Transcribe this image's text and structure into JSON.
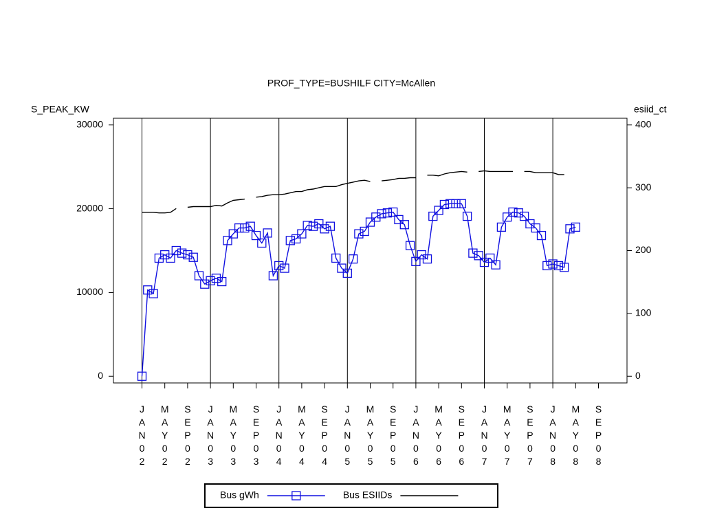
{
  "chart_data": {
    "type": "line",
    "title": "PROF_TYPE=BUSHILF CITY=McAllen",
    "y_label": "S_PEAK_KW",
    "y2_label": "esiid_ct",
    "x": [
      "2002-01",
      "2002-02",
      "2002-03",
      "2002-04",
      "2002-05",
      "2002-06",
      "2002-07",
      "2002-08",
      "2002-09",
      "2002-10",
      "2002-11",
      "2002-12",
      "2003-01",
      "2003-02",
      "2003-03",
      "2003-04",
      "2003-05",
      "2003-06",
      "2003-07",
      "2003-08",
      "2003-09",
      "2003-10",
      "2003-11",
      "2003-12",
      "2004-01",
      "2004-02",
      "2004-03",
      "2004-04",
      "2004-05",
      "2004-06",
      "2004-07",
      "2004-08",
      "2004-09",
      "2004-10",
      "2004-11",
      "2004-12",
      "2005-01",
      "2005-02",
      "2005-03",
      "2005-04",
      "2005-05",
      "2005-06",
      "2005-07",
      "2005-08",
      "2005-09",
      "2005-10",
      "2005-11",
      "2005-12",
      "2006-01",
      "2006-02",
      "2006-03",
      "2006-04",
      "2006-05",
      "2006-06",
      "2006-07",
      "2006-08",
      "2006-09",
      "2006-10",
      "2006-11",
      "2006-12",
      "2007-01",
      "2007-02",
      "2007-03",
      "2007-04",
      "2007-05",
      "2007-06",
      "2007-07",
      "2007-08",
      "2007-09",
      "2007-10",
      "2007-11",
      "2007-12",
      "2008-01",
      "2008-02",
      "2008-03",
      "2008-04",
      "2008-05"
    ],
    "series": [
      {
        "name": "Bus gWh",
        "color": "#1010e0",
        "marker": "square",
        "values": [
          0,
          10300,
          9860,
          14100,
          14500,
          14100,
          15000,
          14700,
          14500,
          14200,
          12000,
          11000,
          11400,
          11700,
          11300,
          16200,
          17000,
          17700,
          17700,
          17900,
          16800,
          15900,
          17100,
          12000,
          13200,
          12900,
          16200,
          16400,
          17000,
          18000,
          17900,
          18200,
          17600,
          17900,
          14100,
          12900,
          12300,
          14000,
          17000,
          17300,
          18400,
          19000,
          19400,
          19500,
          19600,
          18700,
          18100,
          15600,
          13700,
          14500,
          14000,
          19100,
          19800,
          20500,
          20600,
          20600,
          20600,
          19100,
          14700,
          14400,
          13600,
          14100,
          13300,
          17800,
          19000,
          19600,
          19500,
          19100,
          18200,
          17700,
          16800,
          13200,
          13400,
          13200,
          13000,
          17600,
          17800
        ]
      },
      {
        "name": "Bus ESIIDs",
        "color": "#000000",
        "axis": "y2",
        "values": [
          261,
          261,
          261,
          260,
          260,
          261,
          267,
          null,
          269,
          270,
          270,
          270,
          270,
          272,
          271,
          276,
          280,
          281,
          282,
          null,
          285,
          286,
          288,
          289,
          289,
          290,
          292,
          294,
          294,
          297,
          298,
          300,
          302,
          302,
          302,
          305,
          307,
          309,
          311,
          312,
          310,
          null,
          311,
          312,
          313,
          315,
          315,
          316,
          316,
          null,
          320,
          320,
          319,
          322,
          324,
          325,
          326,
          325,
          null,
          326,
          327,
          326,
          326,
          326,
          326,
          326,
          null,
          326,
          326,
          324,
          324,
          324,
          324,
          321,
          321,
          null,
          321
        ]
      }
    ],
    "xlim": [
      "2001-08",
      "2009-02"
    ],
    "xticks": [
      {
        "value": "2002-01",
        "label": "JAN02"
      },
      {
        "value": "2002-05",
        "label": "MAY02"
      },
      {
        "value": "2002-09",
        "label": "SEP02"
      },
      {
        "value": "2003-01",
        "label": "JAN03"
      },
      {
        "value": "2003-05",
        "label": "MAY03"
      },
      {
        "value": "2003-09",
        "label": "SEP03"
      },
      {
        "value": "2004-01",
        "label": "JAN04"
      },
      {
        "value": "2004-05",
        "label": "MAY04"
      },
      {
        "value": "2004-09",
        "label": "SEP04"
      },
      {
        "value": "2005-01",
        "label": "JAN05"
      },
      {
        "value": "2005-05",
        "label": "MAY05"
      },
      {
        "value": "2005-09",
        "label": "SEP05"
      },
      {
        "value": "2006-01",
        "label": "JAN06"
      },
      {
        "value": "2006-05",
        "label": "MAY06"
      },
      {
        "value": "2006-09",
        "label": "SEP06"
      },
      {
        "value": "2007-01",
        "label": "JAN07"
      },
      {
        "value": "2007-05",
        "label": "MAY07"
      },
      {
        "value": "2007-09",
        "label": "SEP07"
      },
      {
        "value": "2008-01",
        "label": "JAN08"
      },
      {
        "value": "2008-05",
        "label": "MAY08"
      },
      {
        "value": "2008-09",
        "label": "SEP08"
      }
    ],
    "ylim": [
      -800,
      30800
    ],
    "yticks": [
      0,
      10000,
      20000,
      30000
    ],
    "y2lim": [
      -10.67,
      410.67
    ],
    "y2ticks": [
      0,
      100,
      200,
      300,
      400
    ],
    "legend": "bottom"
  }
}
